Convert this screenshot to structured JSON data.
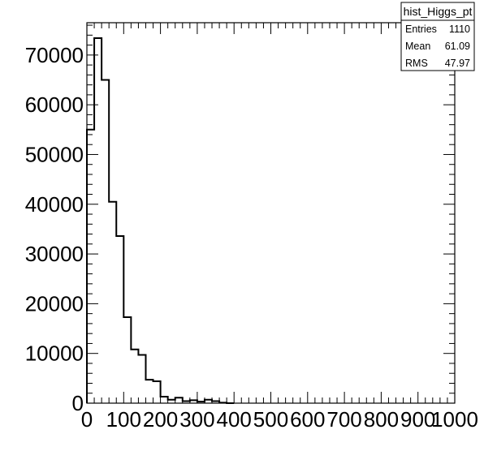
{
  "chart_data": {
    "type": "histogram",
    "title": "",
    "xlabel": "",
    "ylabel": "",
    "xlim": [
      0,
      1000
    ],
    "ylim": [
      0,
      76500
    ],
    "bin_width": 20,
    "x_ticks": [
      "0",
      "100",
      "200",
      "300",
      "400",
      "500",
      "600",
      "700",
      "800",
      "900",
      "1000"
    ],
    "y_ticks": [
      "0",
      "10000",
      "20000",
      "30000",
      "40000",
      "50000",
      "60000",
      "70000"
    ],
    "bins": [
      {
        "x": 0,
        "value": 55000
      },
      {
        "x": 20,
        "value": 73400
      },
      {
        "x": 40,
        "value": 65000
      },
      {
        "x": 60,
        "value": 40500
      },
      {
        "x": 80,
        "value": 33600
      },
      {
        "x": 100,
        "value": 17300
      },
      {
        "x": 120,
        "value": 10800
      },
      {
        "x": 140,
        "value": 9700
      },
      {
        "x": 160,
        "value": 4700
      },
      {
        "x": 180,
        "value": 4400
      },
      {
        "x": 200,
        "value": 1300
      },
      {
        "x": 220,
        "value": 700
      },
      {
        "x": 240,
        "value": 1100
      },
      {
        "x": 260,
        "value": 400
      },
      {
        "x": 280,
        "value": 600
      },
      {
        "x": 300,
        "value": 300
      },
      {
        "x": 320,
        "value": 700
      },
      {
        "x": 340,
        "value": 400
      },
      {
        "x": 360,
        "value": 100
      },
      {
        "x": 380,
        "value": 0
      }
    ],
    "grid": false,
    "legend": "none"
  },
  "stats_box": {
    "title": "hist_Higgs_pt",
    "rows": [
      {
        "label": "Entries",
        "value": "1110"
      },
      {
        "label": "Mean",
        "value": "61.09"
      },
      {
        "label": "RMS",
        "value": "47.97"
      }
    ]
  }
}
